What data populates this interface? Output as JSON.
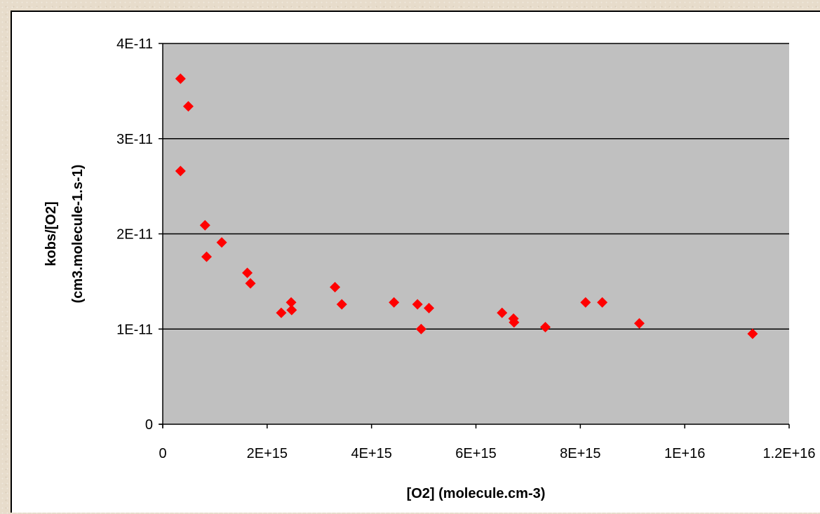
{
  "chart_data": {
    "type": "scatter",
    "xlabel": "[O2] (molecule.cm-3)",
    "ylabel": [
      "kobs/[O2]",
      "(cm3.molecule-1.s-1)"
    ],
    "xlim": [
      0,
      1.2e+16
    ],
    "ylim": [
      0,
      4e-11
    ],
    "x_ticks": [
      {
        "value": 0,
        "label": "0"
      },
      {
        "value": 2000000000000000.0,
        "label": "2E+15"
      },
      {
        "value": 4000000000000000.0,
        "label": "4E+15"
      },
      {
        "value": 6000000000000000.0,
        "label": "6E+15"
      },
      {
        "value": 8000000000000000.0,
        "label": "8E+15"
      },
      {
        "value": 1e+16,
        "label": "1E+16"
      },
      {
        "value": 1.2e+16,
        "label": "1.2E+16"
      }
    ],
    "y_ticks": [
      {
        "value": 0,
        "label": "0"
      },
      {
        "value": 1e-11,
        "label": "1E-11"
      },
      {
        "value": 2e-11,
        "label": "2E-11"
      },
      {
        "value": 3e-11,
        "label": "3E-11"
      },
      {
        "value": 4e-11,
        "label": "4E-11"
      }
    ],
    "grid": "horizontal",
    "plot_background": "#c0c0c0",
    "marker_color": "#ff0000",
    "marker_shape": "diamond",
    "series": [
      {
        "points": [
          {
            "x": 340000000000000.0,
            "y": 3.63e-11
          },
          {
            "x": 490000000000000.0,
            "y": 3.34e-11
          },
          {
            "x": 340000000000000.0,
            "y": 2.66e-11
          },
          {
            "x": 810000000000000.0,
            "y": 2.09e-11
          },
          {
            "x": 840000000000000.0,
            "y": 1.76e-11
          },
          {
            "x": 1130000000000000.0,
            "y": 1.91e-11
          },
          {
            "x": 1620000000000000.0,
            "y": 1.59e-11
          },
          {
            "x": 1680000000000000.0,
            "y": 1.48e-11
          },
          {
            "x": 2270000000000000.0,
            "y": 1.17e-11
          },
          {
            "x": 2460000000000000.0,
            "y": 1.28e-11
          },
          {
            "x": 2470000000000000.0,
            "y": 1.2e-11
          },
          {
            "x": 3300000000000000.0,
            "y": 1.44e-11
          },
          {
            "x": 3430000000000000.0,
            "y": 1.26e-11
          },
          {
            "x": 4430000000000000.0,
            "y": 1.28e-11
          },
          {
            "x": 4880000000000000.0,
            "y": 1.26e-11
          },
          {
            "x": 4950000000000000.0,
            "y": 1e-11
          },
          {
            "x": 5100000000000000.0,
            "y": 1.22e-11
          },
          {
            "x": 6500000000000000.0,
            "y": 1.17e-11
          },
          {
            "x": 6720000000000000.0,
            "y": 1.11e-11
          },
          {
            "x": 6730000000000000.0,
            "y": 1.07e-11
          },
          {
            "x": 7330000000000000.0,
            "y": 1.02e-11
          },
          {
            "x": 8100000000000000.0,
            "y": 1.28e-11
          },
          {
            "x": 8420000000000000.0,
            "y": 1.28e-11
          },
          {
            "x": 9130000000000000.0,
            "y": 1.06e-11
          },
          {
            "x": 1.13e+16,
            "y": 9.5e-12
          }
        ]
      }
    ]
  }
}
